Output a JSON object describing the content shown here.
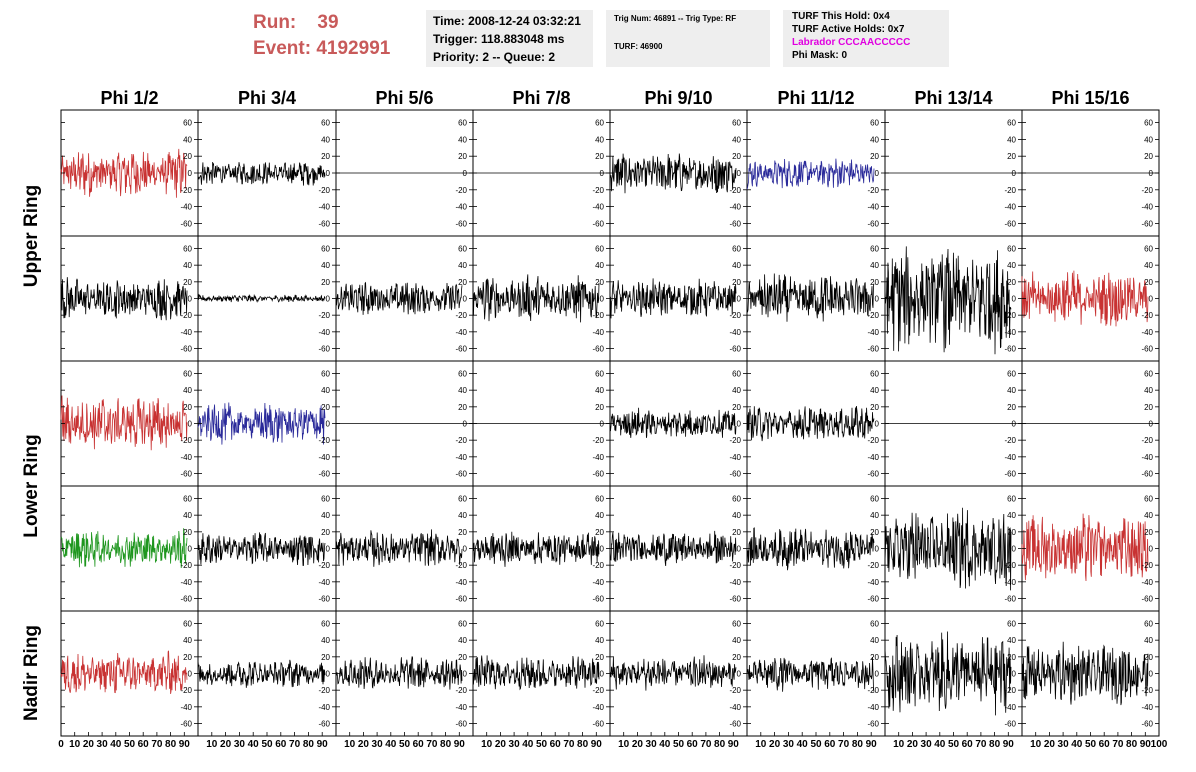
{
  "header": {
    "run_label": "Run:",
    "run_value": "39",
    "event_label": "Event:",
    "event_value": "4192991"
  },
  "time_box": {
    "time": "Time: 2008-12-24 03:32:21",
    "trigger": "Trigger: 118.883048 ms",
    "priority": "Priority: 2 -- Queue: 2"
  },
  "trig_box": {
    "trig_line": "Trig Num: 46891 -- Trig Type: RF",
    "turf_line": "TURF: 46900"
  },
  "turf_box": {
    "this_hold": "TURF This Hold: 0x4",
    "active_holds": "TURF Active Holds: 0x7",
    "labrador": "Labrador CCCAACCCCC",
    "phi_mask": "Phi Mask: 0"
  },
  "colors": {
    "header_text": "#c85a5a",
    "labrador_text": "#e000e0",
    "box_bg": "#eeeeee",
    "trace_black": "#000000",
    "trace_red": "#c83232",
    "trace_blue": "#2a2a9a",
    "trace_green": "#1e961e"
  },
  "column_titles": [
    "Phi 1/2",
    "Phi 3/4",
    "Phi 5/6",
    "Phi 7/8",
    "Phi 9/10",
    "Phi 11/12",
    "Phi 13/14",
    "Phi 15/16"
  ],
  "ring_labels": [
    "Upper Ring",
    "Lower Ring",
    "Nadir Ring"
  ],
  "chart_data": {
    "type": "line",
    "title": "",
    "ylim": [
      -75,
      75
    ],
    "y_ticks": [
      -60,
      -40,
      -20,
      0,
      20,
      40,
      60
    ],
    "xlim": [
      0,
      100
    ],
    "x_ticks_first": [
      "0",
      "10",
      "20",
      "30",
      "40",
      "50",
      "60",
      "70",
      "80",
      "90",
      "100"
    ],
    "x_ticks_other": [
      "10",
      "20",
      "30",
      "40",
      "50",
      "60",
      "70",
      "80",
      "90",
      "100"
    ],
    "x_tick_label_last": "100",
    "grid": false,
    "rows": [
      {
        "label": "Upper Ring",
        "channels": [
          {
            "color": "red",
            "amplitude": 25,
            "x_end": 92
          },
          {
            "color": "black",
            "amplitude": 13,
            "x_end": 92
          },
          {
            "color": "black",
            "amplitude": 0,
            "x_end": 100
          },
          {
            "color": "black",
            "amplitude": 0,
            "x_end": 100
          },
          {
            "color": "black",
            "amplitude": 22,
            "x_end": 92
          },
          {
            "color": "blue",
            "amplitude": 16,
            "x_end": 92
          },
          {
            "color": "black",
            "amplitude": 0,
            "x_end": 100
          },
          {
            "color": "black",
            "amplitude": 0,
            "x_end": 100
          }
        ]
      },
      {
        "label": "Upper Ring",
        "channels": [
          {
            "color": "black",
            "amplitude": 22,
            "x_end": 92
          },
          {
            "color": "black",
            "amplitude": 4,
            "x_end": 92
          },
          {
            "color": "black",
            "amplitude": 18,
            "x_end": 92
          },
          {
            "color": "black",
            "amplitude": 24,
            "x_end": 92
          },
          {
            "color": "black",
            "amplitude": 20,
            "x_end": 92
          },
          {
            "color": "black",
            "amplitude": 26,
            "x_end": 92
          },
          {
            "color": "black",
            "amplitude": 55,
            "x_end": 92
          },
          {
            "color": "red",
            "amplitude": 30,
            "x_end": 92
          }
        ]
      },
      {
        "label": "Lower Ring",
        "channels": [
          {
            "color": "red",
            "amplitude": 30,
            "x_end": 92
          },
          {
            "color": "blue",
            "amplitude": 22,
            "x_end": 92
          },
          {
            "color": "black",
            "amplitude": 0,
            "x_end": 100
          },
          {
            "color": "black",
            "amplitude": 0,
            "x_end": 100
          },
          {
            "color": "black",
            "amplitude": 16,
            "x_end": 92
          },
          {
            "color": "black",
            "amplitude": 18,
            "x_end": 92
          },
          {
            "color": "black",
            "amplitude": 0,
            "x_end": 100
          },
          {
            "color": "black",
            "amplitude": 0,
            "x_end": 100
          }
        ]
      },
      {
        "label": "Lower Ring",
        "channels": [
          {
            "color": "green",
            "amplitude": 20,
            "x_end": 92
          },
          {
            "color": "black",
            "amplitude": 17,
            "x_end": 92
          },
          {
            "color": "black",
            "amplitude": 19,
            "x_end": 92
          },
          {
            "color": "black",
            "amplitude": 19,
            "x_end": 92
          },
          {
            "color": "black",
            "amplitude": 18,
            "x_end": 92
          },
          {
            "color": "black",
            "amplitude": 22,
            "x_end": 92
          },
          {
            "color": "black",
            "amplitude": 42,
            "x_end": 92
          },
          {
            "color": "red",
            "amplitude": 35,
            "x_end": 92
          }
        ]
      },
      {
        "label": "Nadir Ring",
        "channels": [
          {
            "color": "red",
            "amplitude": 22,
            "x_end": 92
          },
          {
            "color": "black",
            "amplitude": 15,
            "x_end": 92
          },
          {
            "color": "black",
            "amplitude": 18,
            "x_end": 92
          },
          {
            "color": "black",
            "amplitude": 18,
            "x_end": 92
          },
          {
            "color": "black",
            "amplitude": 18,
            "x_end": 92
          },
          {
            "color": "black",
            "amplitude": 18,
            "x_end": 92
          },
          {
            "color": "black",
            "amplitude": 42,
            "x_end": 92
          },
          {
            "color": "black",
            "amplitude": 32,
            "x_end": 92
          }
        ]
      }
    ]
  }
}
